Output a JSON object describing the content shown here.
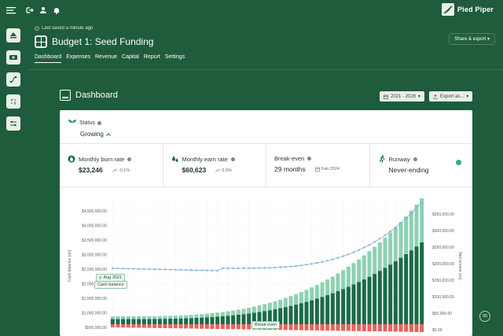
{
  "app": {
    "brand": "Pied Piper",
    "last_saved": "Last saved a minute ago",
    "budget_title": "Budget 1: Seed Funding",
    "share_label": "Share & export",
    "tabs": [
      "Dashboard",
      "Expenses",
      "Revenue",
      "Capital",
      "Report",
      "Settings"
    ]
  },
  "dashboard": {
    "title": "Dashboard",
    "range_label": "2021 - 2026",
    "export_label": "Export as..."
  },
  "status": {
    "label": "Status",
    "value": "Growing"
  },
  "metrics": [
    {
      "label": "Monthly burn rate",
      "value": "$23,246",
      "sub": "-0.1%"
    },
    {
      "label": "Monthly earn rate",
      "value": "$60,623",
      "sub": "6.6%"
    },
    {
      "label": "Break-even",
      "value": "29 months",
      "sub": "Feb 2024"
    },
    {
      "label": "Runway",
      "value": "Never-ending",
      "sub": ""
    }
  ],
  "colors": {
    "bg": "#1f5c3b",
    "bar_dark": "#1a6b47",
    "bar_light": "#8fd1b4",
    "bar_red": "#e5635b",
    "line": "#7fb3d6"
  },
  "chart_data": {
    "type": "bar",
    "left_axis": {
      "label": "Cash balance (on)",
      "ticks": [
        "$4,500,000.00",
        "$4,000,000.00",
        "$3,500,000.00",
        "$3,000,000.00",
        "$2,500,000.00",
        "$2,000,000.00",
        "$1,500,000.00",
        "$1,000,000.00",
        "$500,000.00"
      ]
    },
    "right_axis": {
      "label": "Net income (on)",
      "ticks": [
        "$350,000.00",
        "$300,000.00",
        "$250,000.00",
        "$200,000.00",
        "$150,000.00",
        "$100,000.00",
        "$50,000.00",
        "$0.00"
      ],
      "range": [
        0,
        350000
      ]
    },
    "callouts": {
      "tooltip": "y: Aug 2021",
      "series": "Cash balance",
      "breakeven": "Break-even"
    },
    "bar_counts": 60,
    "series": [
      {
        "name": "Cash balance",
        "type": "line"
      }
    ]
  },
  "corner_badge": "00"
}
